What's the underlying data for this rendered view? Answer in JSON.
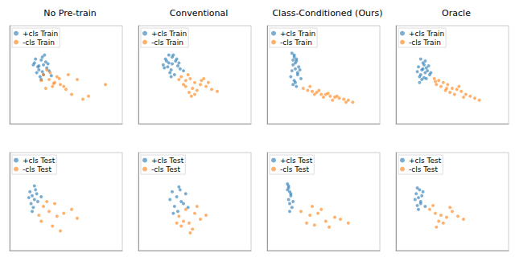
{
  "chart_data": [
    {
      "type": "scatter",
      "title": "No Pre-train",
      "xlim": [
        0,
        100
      ],
      "ylim": [
        0,
        100
      ],
      "tick_labels": false,
      "grid": false,
      "legend": "upper left",
      "series": [
        {
          "name": "+cls Train",
          "color": "#1f77b4",
          "x": [
            22,
            25,
            28,
            30,
            26,
            32,
            24,
            29,
            27,
            33,
            21,
            35,
            30,
            23,
            28,
            31,
            26,
            34,
            29,
            37
          ],
          "values": [
            62,
            58,
            65,
            60,
            55,
            63,
            52,
            68,
            48,
            57,
            60,
            54,
            50,
            66,
            45,
            70,
            59,
            61,
            53,
            49
          ]
        },
        {
          "name": "-cls Train",
          "color": "#ff7f0e",
          "x": [
            30,
            35,
            40,
            33,
            45,
            38,
            42,
            28,
            50,
            36,
            55,
            44,
            48,
            39,
            60,
            32,
            70,
            52,
            65,
            85
          ],
          "values": [
            50,
            45,
            42,
            55,
            40,
            38,
            48,
            44,
            35,
            52,
            30,
            46,
            38,
            41,
            45,
            36,
            28,
            50,
            25,
            40
          ]
        }
      ]
    },
    {
      "type": "scatter",
      "title": "Conventional",
      "xlim": [
        0,
        100
      ],
      "ylim": [
        0,
        100
      ],
      "tick_labels": false,
      "grid": false,
      "legend": "upper left",
      "series": [
        {
          "name": "+cls Train",
          "color": "#1f77b4",
          "x": [
            24,
            27,
            30,
            26,
            33,
            29,
            22,
            31,
            35,
            28,
            25,
            37,
            32,
            27,
            30,
            40,
            23,
            34,
            29,
            36
          ],
          "values": [
            66,
            62,
            68,
            58,
            64,
            55,
            60,
            70,
            59,
            52,
            64,
            56,
            50,
            70,
            61,
            54,
            57,
            66,
            48,
            62
          ]
        },
        {
          "name": "-cls Train",
          "color": "#ff7f0e",
          "x": [
            38,
            42,
            46,
            40,
            50,
            44,
            48,
            55,
            52,
            36,
            60,
            45,
            58,
            42,
            65,
            50,
            62,
            47,
            70,
            56
          ],
          "values": [
            48,
            44,
            46,
            40,
            42,
            50,
            36,
            40,
            34,
            45,
            38,
            32,
            46,
            38,
            35,
            30,
            42,
            28,
            33,
            44
          ]
        }
      ]
    },
    {
      "type": "scatter",
      "title": "Class-Conditioned (Ours)",
      "xlim": [
        0,
        100
      ],
      "ylim": [
        0,
        100
      ],
      "tick_labels": false,
      "grid": false,
      "legend": "upper left",
      "series": [
        {
          "name": "+cls Train",
          "color": "#1f77b4",
          "x": [
            22,
            24,
            26,
            23,
            25,
            27,
            21,
            24,
            26,
            28,
            23,
            25,
            22,
            27,
            24,
            30,
            26,
            23,
            25,
            29
          ],
          "values": [
            72,
            68,
            64,
            60,
            56,
            52,
            48,
            44,
            66,
            58,
            40,
            62,
            54,
            50,
            70,
            46,
            38,
            65,
            42,
            55
          ]
        },
        {
          "name": "-cls Train",
          "color": "#ff7f0e",
          "x": [
            32,
            36,
            40,
            44,
            48,
            52,
            56,
            60,
            64,
            68,
            72,
            38,
            46,
            54,
            62,
            70,
            42,
            50,
            58,
            76
          ],
          "values": [
            36,
            34,
            33,
            32,
            30,
            30,
            28,
            27,
            26,
            25,
            24,
            38,
            34,
            31,
            28,
            22,
            30,
            27,
            24,
            22
          ]
        }
      ]
    },
    {
      "type": "scatter",
      "title": "Oracle",
      "xlim": [
        0,
        100
      ],
      "ylim": [
        0,
        100
      ],
      "tick_labels": false,
      "grid": false,
      "legend": "upper left",
      "series": [
        {
          "name": "+cls Train",
          "color": "#1f77b4",
          "x": [
            20,
            23,
            26,
            22,
            25,
            28,
            21,
            24,
            27,
            30,
            23,
            26,
            19,
            25,
            29,
            22,
            27,
            24,
            31,
            21
          ],
          "values": [
            58,
            55,
            52,
            50,
            60,
            54,
            48,
            62,
            57,
            50,
            45,
            64,
            53,
            47,
            59,
            66,
            46,
            56,
            52,
            42
          ]
        },
        {
          "name": "-cls Train",
          "color": "#ff7f0e",
          "x": [
            34,
            38,
            42,
            36,
            46,
            40,
            50,
            44,
            54,
            48,
            58,
            52,
            62,
            35,
            66,
            56,
            70,
            45,
            60,
            74
          ],
          "values": [
            46,
            44,
            42,
            40,
            40,
            38,
            36,
            34,
            35,
            32,
            33,
            30,
            30,
            43,
            28,
            38,
            26,
            36,
            27,
            24
          ]
        }
      ]
    },
    {
      "type": "scatter",
      "xlim": [
        0,
        100
      ],
      "ylim": [
        0,
        100
      ],
      "tick_labels": false,
      "grid": false,
      "legend": "upper left",
      "series": [
        {
          "name": "+cls Test",
          "color": "#1f77b4",
          "x": [
            18,
            20,
            22,
            19,
            24,
            21,
            23,
            17,
            25,
            20,
            22,
            28
          ],
          "values": [
            60,
            56,
            52,
            48,
            58,
            44,
            62,
            54,
            50,
            40,
            66,
            55
          ]
        },
        {
          "name": "-cls Test",
          "color": "#ff7f0e",
          "x": [
            30,
            35,
            42,
            28,
            48,
            38,
            55,
            45,
            33,
            60,
            40,
            26
          ],
          "values": [
            45,
            40,
            35,
            30,
            38,
            25,
            42,
            20,
            50,
            33,
            48,
            36
          ]
        }
      ]
    },
    {
      "type": "scatter",
      "xlim": [
        0,
        100
      ],
      "ylim": [
        0,
        100
      ],
      "tick_labels": false,
      "grid": false,
      "legend": "upper left",
      "series": [
        {
          "name": "+cls Test",
          "color": "#1f77b4",
          "x": [
            30,
            34,
            38,
            32,
            36,
            28,
            40,
            35,
            42,
            31,
            44,
            37
          ],
          "values": [
            60,
            55,
            50,
            45,
            65,
            52,
            48,
            40,
            58,
            38,
            44,
            62
          ]
        },
        {
          "name": "-cls Test",
          "color": "#ff7f0e",
          "x": [
            36,
            40,
            45,
            50,
            38,
            55,
            42,
            48,
            60,
            34,
            52,
            46
          ],
          "values": [
            35,
            30,
            28,
            38,
            25,
            32,
            42,
            22,
            36,
            28,
            45,
            18
          ]
        }
      ]
    },
    {
      "type": "scatter",
      "xlim": [
        0,
        100
      ],
      "ylim": [
        0,
        100
      ],
      "tick_labels": false,
      "grid": false,
      "legend": "upper left",
      "series": [
        {
          "name": "+cls Test",
          "color": "#1f77b4",
          "x": [
            18,
            19,
            20,
            21,
            19,
            20,
            22,
            18,
            21,
            20,
            19,
            23
          ],
          "values": [
            68,
            64,
            60,
            56,
            52,
            48,
            44,
            62,
            58,
            40,
            66,
            50
          ]
        },
        {
          "name": "-cls Test",
          "color": "#ff7f0e",
          "x": [
            30,
            38,
            45,
            52,
            35,
            60,
            42,
            48,
            55,
            65,
            40,
            72
          ],
          "values": [
            40,
            36,
            38,
            30,
            28,
            34,
            26,
            42,
            24,
            32,
            45,
            28
          ]
        }
      ]
    },
    {
      "type": "scatter",
      "xlim": [
        0,
        100
      ],
      "ylim": [
        0,
        100
      ],
      "tick_labels": false,
      "grid": false,
      "legend": "upper left",
      "series": [
        {
          "name": "+cls Test",
          "color": "#1f77b4",
          "x": [
            18,
            20,
            22,
            19,
            21,
            23,
            17,
            20,
            24,
            22,
            19,
            26
          ],
          "values": [
            58,
            54,
            50,
            46,
            62,
            56,
            52,
            42,
            60,
            48,
            64,
            45
          ]
        },
        {
          "name": "-cls Test",
          "color": "#ff7f0e",
          "x": [
            30,
            35,
            40,
            45,
            50,
            38,
            55,
            42,
            48,
            33,
            60,
            36
          ],
          "values": [
            42,
            38,
            36,
            34,
            40,
            30,
            35,
            28,
            44,
            46,
            32,
            24
          ]
        }
      ]
    }
  ]
}
